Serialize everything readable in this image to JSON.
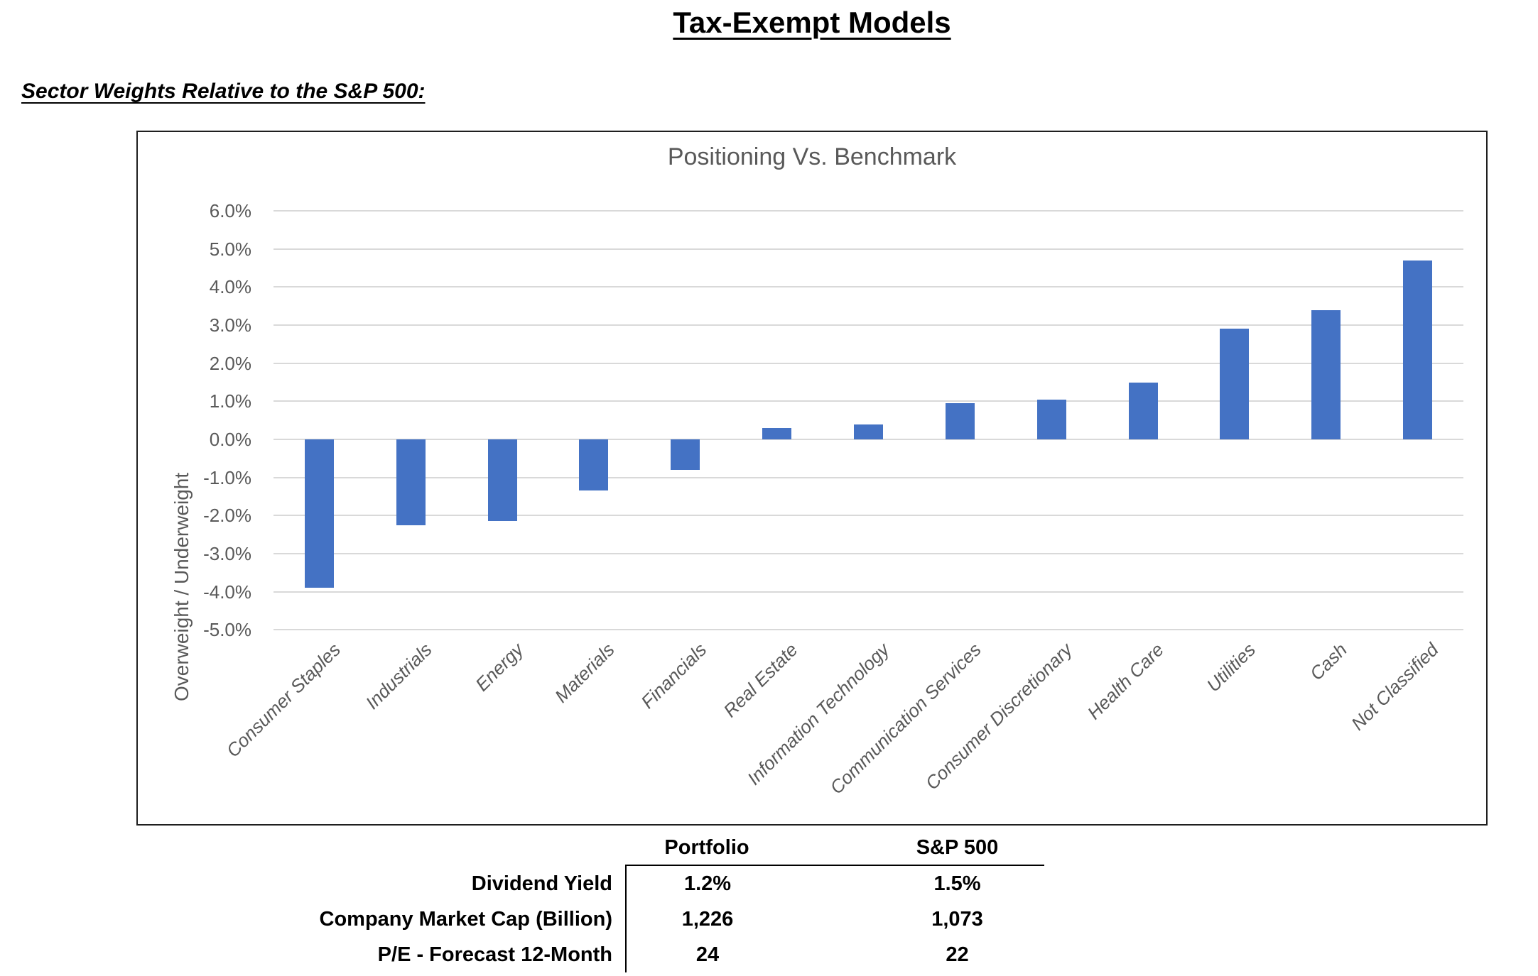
{
  "page": {
    "title": "Tax-Exempt Models",
    "subtitle": "Sector Weights Relative to the S&P 500:"
  },
  "chart_data": {
    "type": "bar",
    "title": "Positioning Vs. Benchmark",
    "xlabel": "",
    "ylabel": "Overweight / Underweight",
    "categories": [
      "Consumer Staples",
      "Industrials",
      "Energy",
      "Materials",
      "Financials",
      "Real Estate",
      "Information Technology",
      "Communication Services",
      "Consumer Discretionary",
      "Health Care",
      "Utilities",
      "Cash",
      "Not Classified"
    ],
    "values": [
      -3.9,
      -2.25,
      -2.15,
      -1.35,
      -0.8,
      0.3,
      0.4,
      0.95,
      1.05,
      1.5,
      2.9,
      3.4,
      4.7
    ],
    "value_unit": "percent",
    "ylim": [
      -5.0,
      6.0
    ],
    "ytick_step": 1.0,
    "ytick_labels": [
      "6.0%",
      "5.0%",
      "4.0%",
      "3.0%",
      "2.0%",
      "1.0%",
      "0.0%",
      "-1.0%",
      "-2.0%",
      "-3.0%",
      "-4.0%",
      "-5.0%"
    ],
    "grid": "horizontal",
    "legend": "none",
    "bar_color": "#4472C4",
    "gridline_color": "#d9d9d9",
    "axis_text_color": "#595959"
  },
  "stats_table": {
    "columns": [
      "Portfolio",
      "S&P 500"
    ],
    "rows": [
      {
        "label": "Dividend Yield",
        "portfolio": "1.2%",
        "sp500": "1.5%"
      },
      {
        "label": "Company Market Cap (Billion)",
        "portfolio": "1,226",
        "sp500": "1,073"
      },
      {
        "label": "P/E - Forecast 12-Month",
        "portfolio": "24",
        "sp500": "22"
      }
    ]
  }
}
